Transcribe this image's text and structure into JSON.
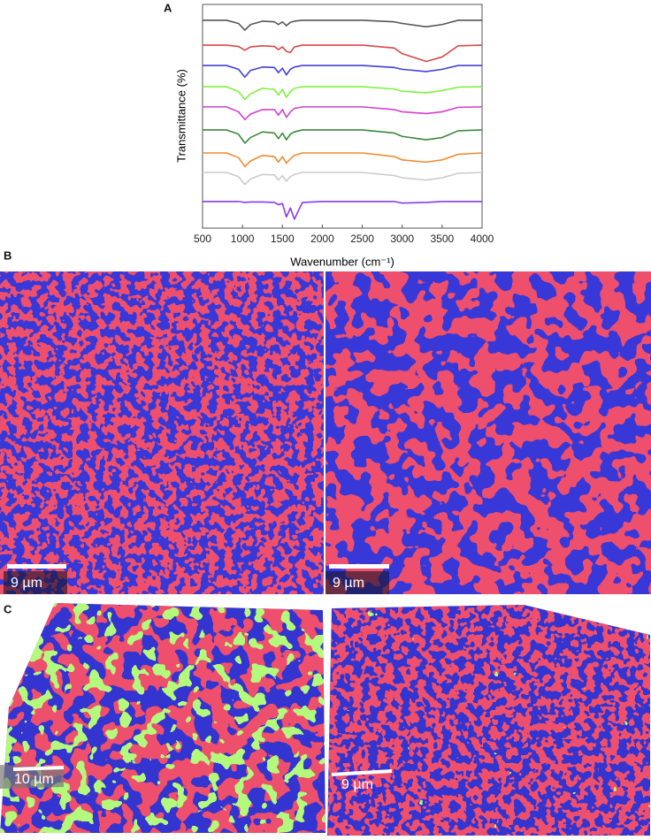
{
  "chart_data": {
    "type": "line",
    "xlabel": "Wavenumber (cm⁻¹)",
    "ylabel": "Transmittance (%)",
    "x": [
      500,
      800,
      950,
      1030,
      1100,
      1250,
      1400,
      1450,
      1500,
      1550,
      1600,
      1650,
      1750,
      2000,
      2500,
      2900,
      3000,
      3300,
      3500,
      3700,
      4000
    ],
    "xlim": [
      500,
      4000
    ],
    "xticks": [
      500,
      1000,
      1500,
      2000,
      2500,
      3000,
      3500,
      4000
    ],
    "ylim": [
      0,
      10
    ],
    "series": [
      {
        "color": "#555555",
        "values": [
          9.29,
          9.29,
          9.15,
          8.85,
          9.1,
          9.25,
          9.22,
          9.1,
          9.22,
          9.05,
          9.2,
          9.25,
          9.29,
          9.29,
          9.29,
          9.22,
          9.15,
          9.0,
          9.1,
          9.29,
          9.29
        ]
      },
      {
        "color": "#d94848",
        "values": [
          8.18,
          8.18,
          8.12,
          7.95,
          8.1,
          8.15,
          8.12,
          7.98,
          8.1,
          7.9,
          7.85,
          8.1,
          8.18,
          8.18,
          8.18,
          8.05,
          7.8,
          7.45,
          7.65,
          8.15,
          8.18
        ]
      },
      {
        "color": "#4040e0",
        "values": [
          7.27,
          7.27,
          7.1,
          6.75,
          7.05,
          7.2,
          7.18,
          6.95,
          7.15,
          6.85,
          7.1,
          7.2,
          7.27,
          7.27,
          7.27,
          7.18,
          7.1,
          7.0,
          7.1,
          7.27,
          7.27
        ]
      },
      {
        "color": "#80f040",
        "values": [
          6.32,
          6.32,
          6.1,
          5.75,
          6.0,
          6.25,
          6.2,
          5.95,
          6.2,
          5.85,
          6.1,
          6.25,
          6.32,
          6.32,
          6.32,
          6.22,
          6.12,
          6.05,
          6.15,
          6.3,
          6.32
        ]
      },
      {
        "color": "#d040d0",
        "values": [
          5.42,
          5.42,
          5.2,
          4.85,
          5.1,
          5.3,
          5.3,
          5.05,
          5.3,
          4.95,
          5.2,
          5.35,
          5.42,
          5.42,
          5.42,
          5.3,
          5.2,
          5.12,
          5.2,
          5.4,
          5.42
        ]
      },
      {
        "color": "#3a8a3a",
        "values": [
          4.39,
          4.39,
          4.2,
          3.8,
          4.05,
          4.3,
          4.25,
          4.0,
          4.25,
          3.95,
          4.2,
          4.3,
          4.39,
          4.39,
          4.39,
          4.25,
          4.1,
          3.95,
          4.05,
          4.35,
          4.39
        ]
      },
      {
        "color": "#f08a30",
        "values": [
          3.36,
          3.36,
          3.15,
          2.75,
          3.0,
          3.25,
          3.2,
          2.95,
          3.2,
          2.9,
          3.1,
          3.25,
          3.36,
          3.36,
          3.36,
          3.2,
          3.05,
          2.95,
          3.05,
          3.3,
          3.36
        ]
      },
      {
        "color": "#cccccc",
        "values": [
          2.49,
          2.49,
          2.3,
          1.95,
          2.2,
          2.4,
          2.38,
          2.15,
          2.35,
          2.1,
          2.3,
          2.4,
          2.49,
          2.49,
          2.49,
          2.35,
          2.25,
          2.15,
          2.25,
          2.45,
          2.49
        ]
      },
      {
        "color": "#8a3af0",
        "values": [
          1.19,
          1.19,
          1.19,
          1.15,
          1.17,
          1.17,
          1.15,
          1.05,
          1.1,
          0.5,
          0.9,
          0.4,
          1.15,
          1.19,
          1.19,
          1.19,
          1.12,
          1.15,
          1.19,
          1.19,
          1.19
        ]
      }
    ]
  },
  "panels": {
    "labels": [
      "A",
      "B",
      "C"
    ],
    "scale_bars": [
      "9 µm",
      "9 µm",
      "10 µm",
      "9 µm"
    ]
  }
}
